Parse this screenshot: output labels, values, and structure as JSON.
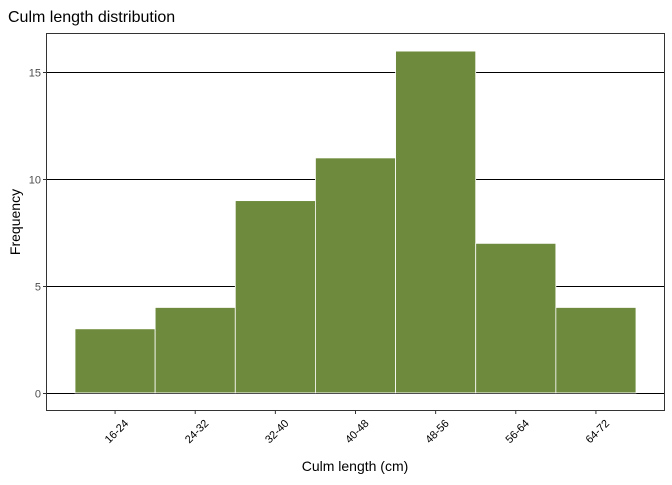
{
  "chart_data": {
    "type": "bar",
    "title": "Culm length distribution",
    "xlabel": "Culm length (cm)",
    "ylabel": "Frequency",
    "categories": [
      "16-24",
      "24-32",
      "32-40",
      "40-48",
      "48-56",
      "56-64",
      "64-72"
    ],
    "values": [
      3,
      4,
      9,
      11,
      16,
      7,
      4
    ],
    "ylim": [
      -0.8,
      16.8
    ],
    "yticks": [
      0,
      5,
      10,
      15
    ],
    "grid": "horizontal-major",
    "bar_color": "#6E8B3D",
    "bar_edge_color": "#FFFFFF",
    "x_tick_rotation_deg": 45
  }
}
